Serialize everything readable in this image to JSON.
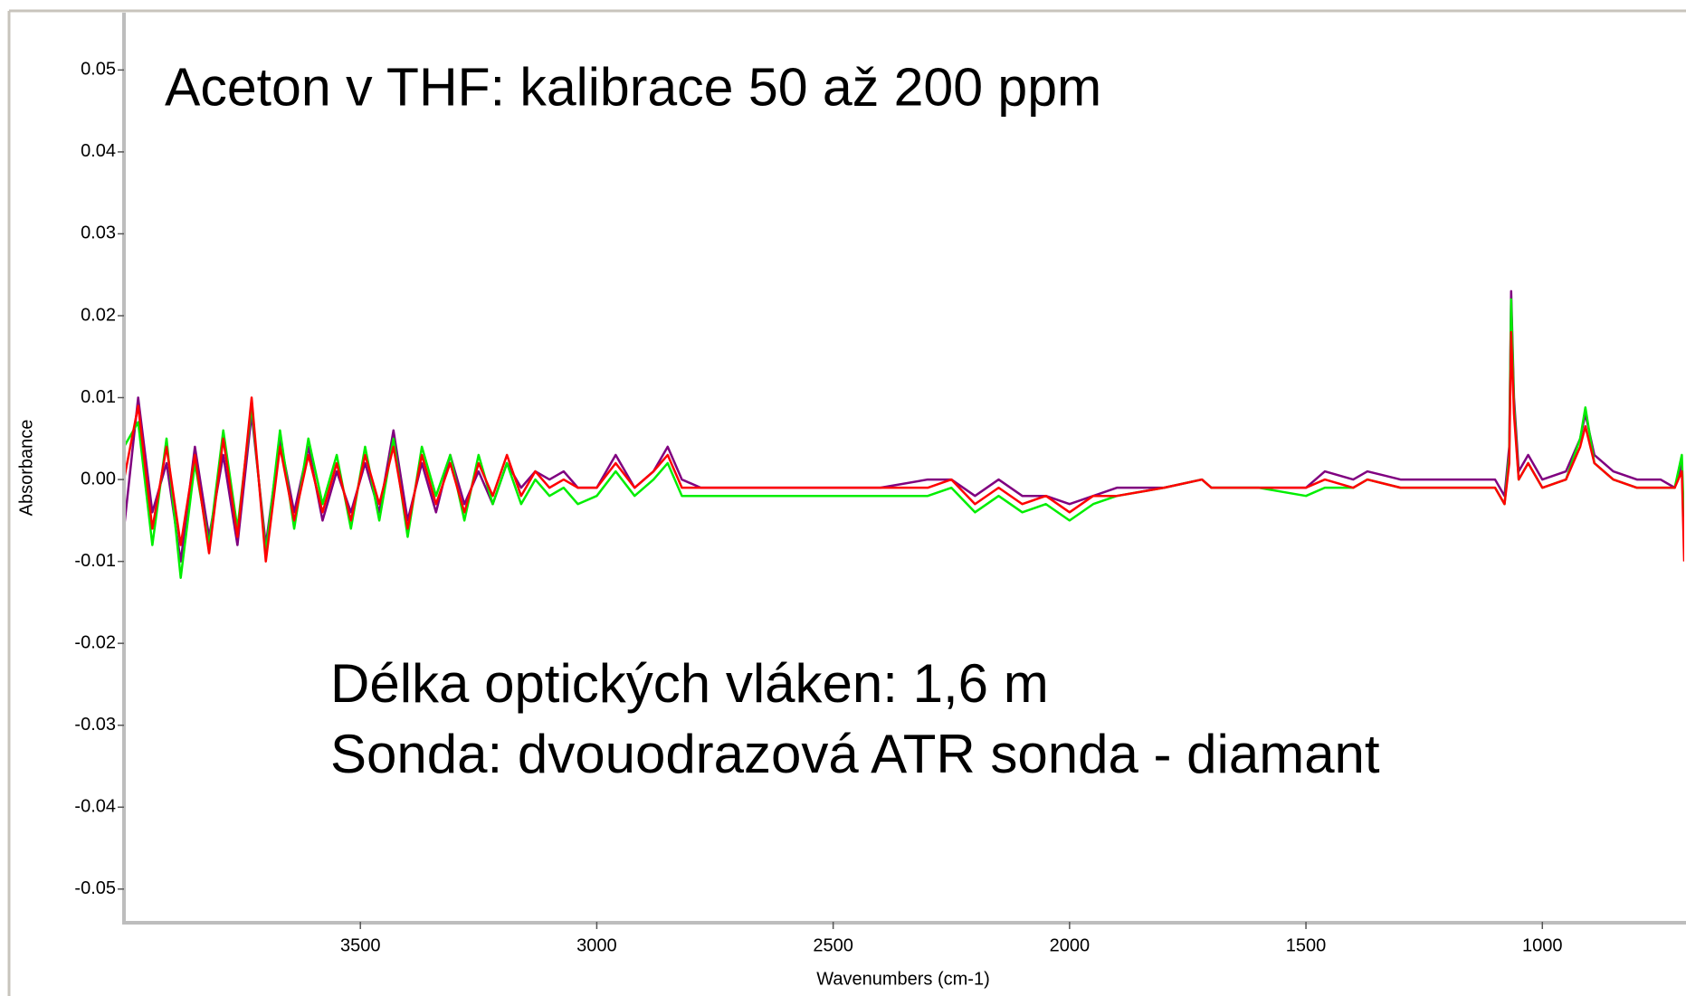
{
  "chart_data": {
    "type": "line",
    "title": "Aceton v THF: kalibrace 50 až 200 ppm",
    "annotations": [
      "Délka optických vláken: 1,6 m",
      "Sonda: dvouodrazová ATR sonda - diamant"
    ],
    "x_label": "Wavenumbers (cm-1)",
    "y_label": "Absorbance",
    "x": [
      4000,
      3970,
      3940,
      3910,
      3880,
      3850,
      3820,
      3790,
      3760,
      3730,
      3700,
      3670,
      3640,
      3610,
      3580,
      3550,
      3520,
      3490,
      3460,
      3430,
      3400,
      3370,
      3340,
      3310,
      3280,
      3250,
      3220,
      3190,
      3160,
      3130,
      3100,
      3070,
      3040,
      3000,
      2960,
      2920,
      2880,
      2850,
      2820,
      2780,
      2700,
      2600,
      2500,
      2400,
      2300,
      2250,
      2200,
      2150,
      2100,
      2050,
      2000,
      1950,
      1900,
      1800,
      1720,
      1700,
      1600,
      1500,
      1460,
      1400,
      1370,
      1300,
      1200,
      1100,
      1080,
      1070,
      1066,
      1060,
      1050,
      1030,
      1000,
      950,
      920,
      909,
      890,
      850,
      800,
      750,
      720,
      705,
      700
    ],
    "series": [
      {
        "color": "#800080",
        "values": [
          -0.006,
          0.01,
          -0.004,
          0.002,
          -0.01,
          0.004,
          -0.007,
          0.003,
          -0.008,
          0.008,
          -0.008,
          0.005,
          -0.004,
          0.004,
          -0.005,
          0.001,
          -0.004,
          0.002,
          -0.004,
          0.006,
          -0.005,
          0.002,
          -0.004,
          0.003,
          -0.003,
          0.001,
          -0.003,
          0.002,
          -0.001,
          0.001,
          0,
          0.001,
          -0.001,
          -0.001,
          0.003,
          -0.001,
          0.001,
          0.004,
          0,
          -0.001,
          -0.001,
          -0.001,
          -0.001,
          -0.001,
          0,
          0,
          -0.002,
          0,
          -0.002,
          -0.002,
          -0.003,
          -0.002,
          -0.001,
          -0.001,
          0,
          -0.001,
          -0.001,
          -0.001,
          0.001,
          0,
          0.001,
          0,
          0,
          0,
          -0.002,
          0.004,
          0.023,
          0.01,
          0.001,
          0.003,
          0,
          0.001,
          0.005,
          0.008,
          0.003,
          0.001,
          0,
          0,
          -0.001,
          0.002,
          -0.008
        ]
      },
      {
        "color": "#00ee00",
        "values": [
          0.004,
          0.007,
          -0.008,
          0.005,
          -0.012,
          0.002,
          -0.008,
          0.006,
          -0.006,
          0.009,
          -0.009,
          0.006,
          -0.006,
          0.005,
          -0.003,
          0.003,
          -0.006,
          0.004,
          -0.005,
          0.005,
          -0.007,
          0.004,
          -0.002,
          0.003,
          -0.005,
          0.003,
          -0.003,
          0.002,
          -0.003,
          0,
          -0.002,
          -0.001,
          -0.003,
          -0.002,
          0.001,
          -0.002,
          0,
          0.002,
          -0.002,
          -0.002,
          -0.002,
          -0.002,
          -0.002,
          -0.002,
          -0.002,
          -0.001,
          -0.004,
          -0.002,
          -0.004,
          -0.003,
          -0.005,
          -0.003,
          -0.002,
          -0.001,
          0,
          -0.001,
          -0.001,
          -0.002,
          -0.001,
          -0.001,
          0,
          -0.001,
          -0.001,
          -0.001,
          -0.003,
          0.003,
          0.022,
          0.009,
          0,
          0.002,
          -0.001,
          0,
          0.005,
          0.0088,
          0.002,
          0,
          -0.001,
          -0.001,
          -0.001,
          0.003,
          -0.006
        ]
      },
      {
        "color": "#ff0000",
        "values": [
          0,
          0.009,
          -0.006,
          0.004,
          -0.008,
          0.003,
          -0.009,
          0.005,
          -0.007,
          0.01,
          -0.01,
          0.004,
          -0.005,
          0.003,
          -0.004,
          0.002,
          -0.005,
          0.003,
          -0.003,
          0.004,
          -0.006,
          0.003,
          -0.003,
          0.002,
          -0.004,
          0.002,
          -0.002,
          0.003,
          -0.002,
          0.001,
          -0.001,
          0,
          -0.001,
          -0.001,
          0.002,
          -0.001,
          0.001,
          0.003,
          -0.001,
          -0.001,
          -0.001,
          -0.001,
          -0.001,
          -0.001,
          -0.001,
          0,
          -0.003,
          -0.001,
          -0.003,
          -0.002,
          -0.004,
          -0.002,
          -0.002,
          -0.001,
          0,
          -0.001,
          -0.001,
          -0.001,
          0,
          -0.001,
          0,
          -0.001,
          -0.001,
          -0.001,
          -0.003,
          0.002,
          0.018,
          0.008,
          0,
          0.002,
          -0.001,
          0,
          0.004,
          0.0065,
          0.002,
          0,
          -0.001,
          -0.001,
          -0.001,
          0.001,
          -0.01
        ]
      }
    ],
    "xlim": [
      4000,
      700
    ],
    "xticks": [
      3500,
      3000,
      2500,
      2000,
      1500,
      1000
    ],
    "ylim": [
      -0.054,
      0.057
    ],
    "yticks": [
      0.05,
      0.04,
      0.03,
      0.02,
      0.01,
      {
        "value": 0,
        "label": "0.00"
      },
      -0.01,
      -0.02,
      -0.03,
      -0.04,
      -0.05
    ],
    "grid": false
  }
}
